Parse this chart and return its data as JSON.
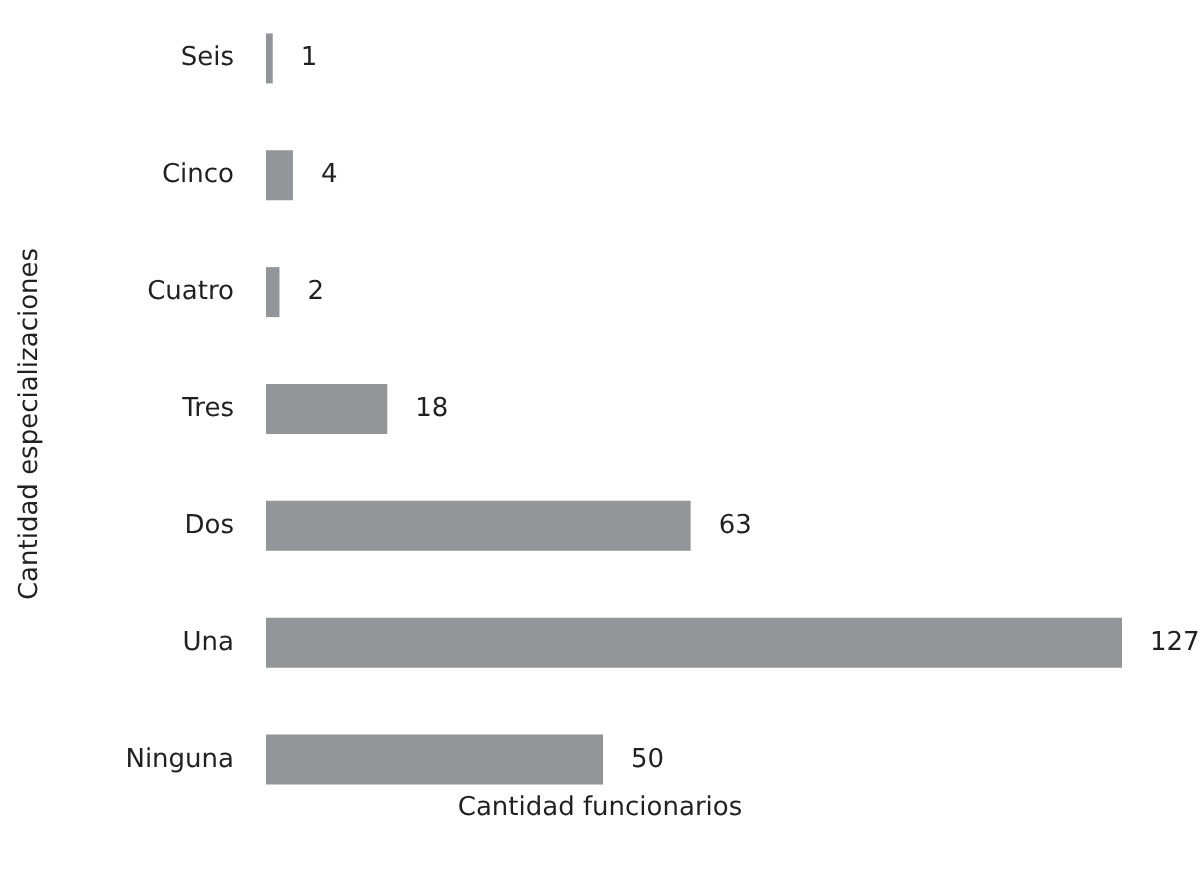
{
  "chart_data": {
    "type": "bar",
    "orientation": "horizontal",
    "xlabel": "Cantidad funcionarios",
    "ylabel": "Cantidad especializaciones",
    "categories": [
      "Seis",
      "Cinco",
      "Cuatro",
      "Tres",
      "Dos",
      "Una",
      "Ninguna"
    ],
    "values": [
      1,
      4,
      2,
      18,
      63,
      127,
      50
    ],
    "color": "#939598",
    "data_labels": true,
    "tick_labels": "y"
  }
}
